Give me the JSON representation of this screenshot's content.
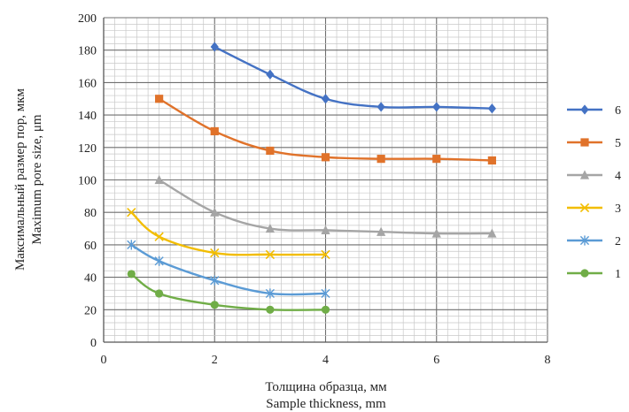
{
  "chart_data": {
    "type": "line",
    "xlabel": [
      "Толщина образца, мм",
      "Sample thickness, mm"
    ],
    "ylabel": [
      "Максимальный размер пор, мкм",
      "Maximum  pore size, μm"
    ],
    "xlim": [
      0,
      8
    ],
    "ylim": [
      0,
      200
    ],
    "xticks": [
      0,
      2,
      4,
      6,
      8
    ],
    "yticks": [
      0,
      20,
      40,
      60,
      80,
      100,
      120,
      140,
      160,
      180,
      200
    ],
    "grid": true,
    "legend_position": "right",
    "series": [
      {
        "name": "6",
        "color": "#4472C4",
        "marker": "diamond",
        "x": [
          2,
          3,
          4,
          5,
          6,
          7
        ],
        "y": [
          182,
          165,
          150,
          145,
          145,
          144
        ]
      },
      {
        "name": "5",
        "color": "#E0722A",
        "marker": "square",
        "x": [
          1,
          2,
          3,
          4,
          5,
          6,
          7
        ],
        "y": [
          150,
          130,
          118,
          114,
          113,
          113,
          112
        ]
      },
      {
        "name": "4",
        "color": "#A5A5A5",
        "marker": "triangle",
        "x": [
          1,
          2,
          3,
          4,
          5,
          6,
          7
        ],
        "y": [
          100,
          80,
          70,
          69,
          68,
          67,
          67
        ]
      },
      {
        "name": "3",
        "color": "#F2BD00",
        "marker": "x",
        "x": [
          0.5,
          1,
          2,
          3,
          4
        ],
        "y": [
          80,
          65,
          55,
          54,
          54
        ]
      },
      {
        "name": "2",
        "color": "#5B9BD5",
        "marker": "star",
        "x": [
          0.5,
          1,
          2,
          3,
          4
        ],
        "y": [
          60,
          50,
          38,
          30,
          30
        ]
      },
      {
        "name": "1",
        "color": "#70AD47",
        "marker": "circle",
        "x": [
          0.5,
          1,
          2,
          3,
          4
        ],
        "y": [
          42,
          30,
          23,
          20,
          20
        ]
      }
    ]
  }
}
